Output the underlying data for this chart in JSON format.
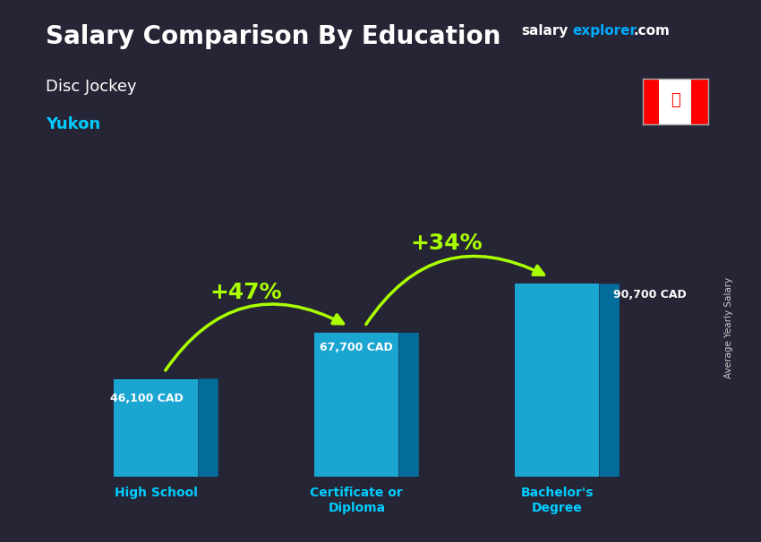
{
  "title": "Salary Comparison By Education",
  "subtitle1": "Disc Jockey",
  "subtitle2": "Yukon",
  "categories": [
    "High School",
    "Certificate or\nDiploma",
    "Bachelor's\nDegree"
  ],
  "values": [
    46100,
    67700,
    90700
  ],
  "labels": [
    "46,100 CAD",
    "67,700 CAD",
    "90,700 CAD"
  ],
  "pct_labels": [
    "+47%",
    "+34%"
  ],
  "front_color": "#1ab8e8",
  "top_color": "#7fddff",
  "side_color": "#0077aa",
  "background_color": "#252535",
  "title_color": "#ffffff",
  "subtitle1_color": "#ffffff",
  "subtitle2_color": "#00ccff",
  "label_color": "#ffffff",
  "pct_color": "#aaff00",
  "xlabel_color": "#00ccff",
  "watermark_salary": "#ffffff",
  "watermark_explorer": "#00aaff",
  "watermark_com": "#ffffff",
  "ylabel_text": "Average Yearly Salary",
  "bar_width": 0.42,
  "max_val": 100000
}
